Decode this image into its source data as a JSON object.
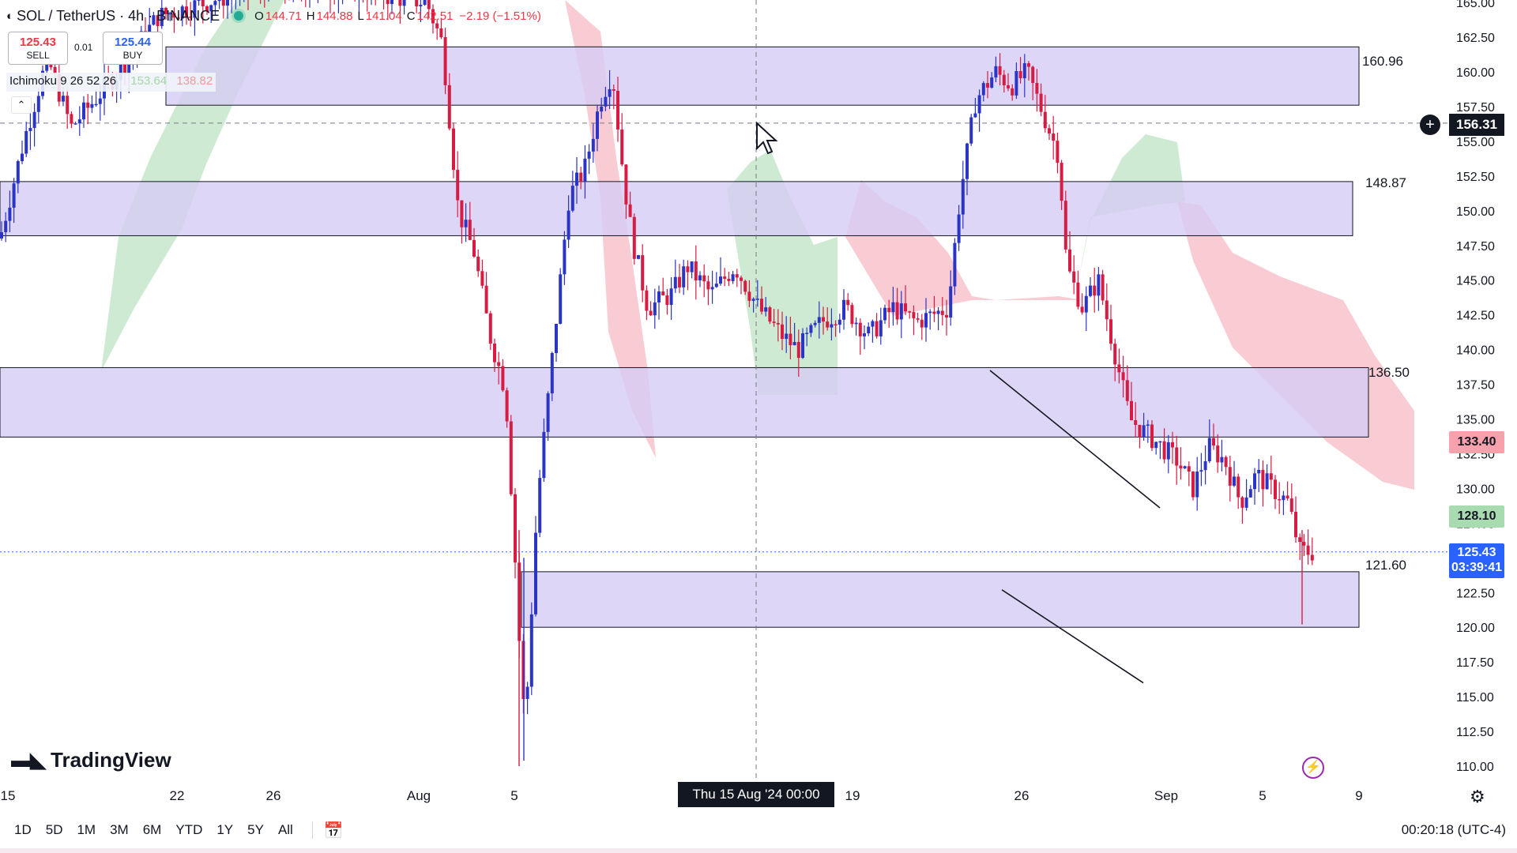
{
  "header": {
    "symbol": "SOL / TetherUS · 4h · BINANCE",
    "open": "144.71",
    "high": "144.88",
    "low": "141.04",
    "close": "142.51",
    "change": "−2.19 (−1.51%)",
    "status_color": "#22ab94"
  },
  "trade": {
    "sell_price": "125.43",
    "sell_label": "SELL",
    "buy_price": "125.44",
    "buy_label": "BUY",
    "spread": "0.01"
  },
  "indicator": {
    "name": "Ichimoku 9 26 52 26",
    "value1": "153.64",
    "value2": "138.82"
  },
  "levels": {
    "l1": "160.96",
    "l2": "148.87",
    "l3": "136.50",
    "l4": "121.60"
  },
  "price_tags": {
    "crosshair_price": "156.31",
    "red_tag": "133.40",
    "green_tag": "128.10",
    "current_price": "125.43",
    "countdown": "03:39:41"
  },
  "crosshair_date": "Thu 15 Aug '24   00:00",
  "logo_text": "TradingView",
  "ranges": [
    "1D",
    "5D",
    "1M",
    "3M",
    "6M",
    "YTD",
    "1Y",
    "5Y",
    "All"
  ],
  "clock": "00:20:18 (UTC-4)",
  "colors": {
    "up_candle": "#2a35c8",
    "down_candle": "#d81b43",
    "zone": "#d6ccf5",
    "cloud_bull": "#bfe3c3",
    "cloud_bear": "#f7b9c3"
  },
  "chart_data": {
    "type": "candlestick",
    "symbol": "SOL / TetherUS",
    "interval": "4h",
    "exchange": "BINANCE",
    "x_ticks": [
      "15",
      "22",
      "26",
      "Aug",
      "5",
      "19",
      "26",
      "Sep",
      "5",
      "9"
    ],
    "y_ticks": [
      "110.00",
      "112.50",
      "115.00",
      "117.50",
      "120.00",
      "122.50",
      "125.00",
      "127.50",
      "130.00",
      "132.50",
      "135.00",
      "137.50",
      "140.00",
      "142.50",
      "145.00",
      "147.50",
      "150.00",
      "152.50",
      "155.00",
      "157.50",
      "160.00",
      "162.50",
      "165.00"
    ],
    "ylim": [
      109,
      165.3
    ],
    "zones": [
      {
        "label": "160.96",
        "from": 157.6,
        "to": 161.8
      },
      {
        "label": "148.87",
        "from": 148.2,
        "to": 152.1
      },
      {
        "label": "136.50",
        "from": 133.7,
        "to": 138.7
      },
      {
        "label": "121.60",
        "from": 120.0,
        "to": 124.0
      }
    ],
    "trendlines": [
      {
        "from": {
          "x": 1253,
          "y": 138.5
        },
        "to": {
          "x": 1468,
          "y": 128.6
        }
      },
      {
        "from": {
          "x": 1268,
          "y": 122.7
        },
        "to": {
          "x": 1447,
          "y": 116.0
        }
      }
    ],
    "key_lows": {
      "aug_5_low": 110.0
    },
    "key_highs": {
      "aug_26_high": 162.2
    },
    "last_price": 125.43
  }
}
